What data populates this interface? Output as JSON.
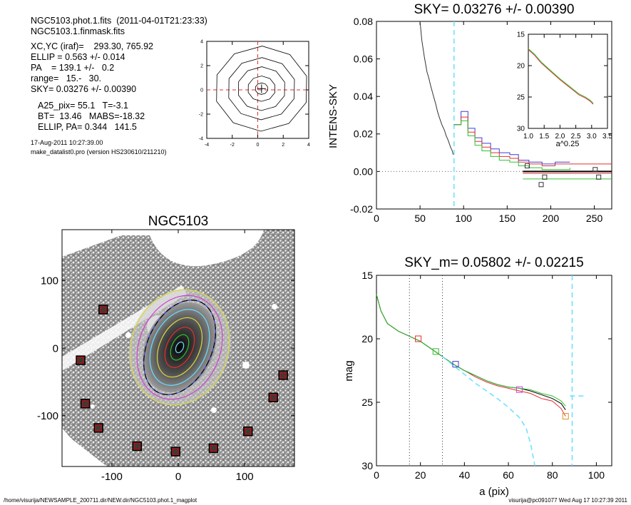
{
  "header": {
    "line1": "NGC5103.phot.1.fits  (2011-04-01T21:23:33)",
    "line2": "NGC5103.1.finmask.fits",
    "xcyc": "XC,YC (iraf)=    293.30, 765.92",
    "ellip": "ELLIP = 0.563 +/- 0.014",
    "pa": "PA    = 139.1 +/-   0.2",
    "range": "range=   15.-   30.",
    "sky": "SKY= 0.03276 +/- 0.00390",
    "a25": "A25_pix= 55.1   T=-3.1",
    "bt": "BT=  13.46   MABS=-18.32",
    "ellip_pa": "ELLIP, PA= 0.344   141.5",
    "date": "17-Aug-2011 10:27:39.00",
    "program": "make_datalist0.pro (version HS230610/211210)"
  },
  "footer": {
    "path": "/home/visurija/NEWSAMPLE_200711.dir/NEW.dir/NGC5103.phot.1_magplot",
    "user": "visurija@pc091077  Wed Aug 17 10:27:39 2011"
  },
  "colors": {
    "red": "#e23030",
    "green": "#30c030",
    "blue": "#3c3cd8",
    "cyan": "#66e0ff",
    "magenta": "#d040d0",
    "yellow": "#d8d840",
    "black": "#000000",
    "box": "#b01010"
  },
  "chart_data": [
    {
      "type": "contour",
      "title": "",
      "xlim": [
        -4,
        4
      ],
      "ylim": [
        -4,
        4
      ],
      "xticks": [
        "-4",
        "-2",
        "0",
        "2",
        "4"
      ],
      "yticks": [
        "4",
        "2",
        "0",
        "-2",
        "-4"
      ],
      "center": [
        0.3,
        0.1
      ],
      "contour_radii": [
        0.5,
        1.1,
        1.9,
        2.7,
        3.7
      ]
    },
    {
      "type": "line",
      "title": "SKY= 0.03276 +/- 0.00390",
      "xlabel": "",
      "ylabel": "INTENS-SKY",
      "xlim": [
        0,
        270
      ],
      "ylim": [
        -0.02,
        0.08
      ],
      "xticks": [
        "0",
        "50",
        "100",
        "150",
        "200",
        "250"
      ],
      "yticks": [
        "0.08",
        "0.06",
        "0.04",
        "0.02",
        "0.00",
        "-0.02"
      ],
      "vline_x": 89,
      "profile": {
        "x": [
          50,
          52,
          55,
          58,
          60,
          62,
          65,
          68,
          70,
          72,
          75,
          78,
          80,
          82,
          85,
          87,
          88
        ],
        "y": [
          0.08,
          0.07,
          0.061,
          0.053,
          0.05,
          0.046,
          0.041,
          0.036,
          0.032,
          0.029,
          0.025,
          0.022,
          0.019,
          0.017,
          0.013,
          0.011,
          0.009
        ]
      },
      "series": [
        {
          "name": "blue",
          "x": [
            89,
            97,
            105,
            113,
            121,
            131,
            141,
            153,
            163,
            175,
            190,
            205,
            222
          ],
          "y": [
            0.025,
            0.032,
            0.023,
            0.018,
            0.015,
            0.012,
            0.01,
            0.009,
            0.006,
            0.005,
            0.004,
            0.005,
            0.005
          ]
        },
        {
          "name": "red",
          "x": [
            89,
            97,
            105,
            113,
            121,
            131,
            141,
            153,
            163,
            175,
            190,
            205,
            222,
            270
          ],
          "y": [
            0.025,
            0.029,
            0.021,
            0.016,
            0.013,
            0.01,
            0.008,
            0.007,
            0.005,
            0.004,
            0.003,
            0.004,
            0.004,
            0.004
          ]
        },
        {
          "name": "green",
          "x": [
            89,
            97,
            105,
            113,
            121,
            131,
            141,
            153,
            163,
            175,
            190,
            205,
            222
          ],
          "y": [
            0.025,
            0.027,
            0.019,
            0.014,
            0.011,
            0.008,
            0.006,
            0.005,
            0.003,
            0.002,
            0.001,
            0.001,
            0.002
          ]
        }
      ],
      "sky_lines": [
        {
          "color": "black",
          "x": [
            168,
            270
          ],
          "y": 0.0
        },
        {
          "color": "red",
          "x": [
            168,
            270
          ],
          "y": -0.001
        },
        {
          "color": "green",
          "x": [
            168,
            270
          ],
          "y": -0.004
        }
      ],
      "markers": [
        {
          "x": 173,
          "y": 0.003
        },
        {
          "x": 189,
          "y": -0.007
        },
        {
          "x": 193,
          "y": -0.003
        },
        {
          "x": 251,
          "y": 0.001
        },
        {
          "x": 255,
          "y": -0.003
        }
      ],
      "inset": {
        "xlabel": "a^0.25",
        "xlim": [
          1.0,
          3.5
        ],
        "ylim": [
          15,
          30
        ],
        "xticks": [
          "1.0",
          "1.5",
          "2.0",
          "2.5",
          "3.0",
          "3.5"
        ],
        "yticks": [
          "15",
          "20",
          "25",
          "30"
        ],
        "x": [
          1.0,
          1.2,
          1.4,
          1.6,
          1.8,
          2.0,
          2.2,
          2.4,
          2.6,
          2.8,
          2.95,
          3.05
        ],
        "y": [
          17.3,
          18.2,
          19.4,
          20.3,
          21.2,
          22.1,
          22.9,
          23.7,
          24.5,
          25.0,
          25.5,
          26.0
        ]
      }
    },
    {
      "type": "image",
      "title": "NGC5103",
      "xlim": [
        -175,
        175
      ],
      "ylim": [
        -175,
        175
      ],
      "xticks": [
        "-100",
        "0",
        "100"
      ],
      "yticks": [
        "100",
        "0",
        "-100"
      ],
      "masked_boxes": [
        [
          -113,
          57
        ],
        [
          -147,
          -18
        ],
        [
          -140,
          -82
        ],
        [
          -120,
          -118
        ],
        [
          -62,
          -145
        ],
        [
          -4,
          -153
        ],
        [
          53,
          -148
        ],
        [
          105,
          -123
        ],
        [
          143,
          -73
        ],
        [
          158,
          -40
        ]
      ]
    },
    {
      "type": "line",
      "title": "SKY_m=  0.05802 +/- 0.02215",
      "xlabel": "a (pix)",
      "ylabel": "mag",
      "xlim": [
        0,
        107
      ],
      "ylim": [
        15,
        30
      ],
      "xticks": [
        "0",
        "20",
        "40",
        "60",
        "80",
        "100"
      ],
      "yticks": [
        "15",
        "20",
        "25",
        "30"
      ],
      "dotted_x": [
        15,
        30
      ],
      "dashed_x": 89,
      "series": [
        {
          "name": "red",
          "x": [
            0,
            2,
            5,
            10,
            15,
            20,
            25,
            30,
            35,
            40,
            45,
            50,
            55,
            60,
            65,
            70,
            75,
            80,
            84,
            86
          ],
          "y": [
            16.5,
            17.8,
            18.8,
            19.4,
            19.8,
            20.2,
            20.8,
            21.4,
            22.0,
            22.5,
            23.0,
            23.4,
            23.7,
            23.9,
            24.1,
            24.3,
            24.7,
            24.9,
            25.5,
            26.1
          ]
        },
        {
          "name": "black",
          "x": [
            0,
            2,
            5,
            10,
            15,
            20,
            25,
            30,
            35,
            40,
            45,
            50,
            55,
            60,
            65,
            70,
            75,
            80,
            84,
            86
          ],
          "y": [
            16.5,
            17.8,
            18.8,
            19.4,
            19.8,
            20.2,
            20.8,
            21.4,
            22.0,
            22.5,
            22.9,
            23.3,
            23.6,
            23.8,
            23.9,
            24.1,
            24.4,
            24.7,
            25.1,
            25.6
          ]
        },
        {
          "name": "green",
          "x": [
            0,
            2,
            5,
            10,
            15,
            20,
            25,
            30,
            35,
            40,
            45,
            50,
            55,
            60,
            65,
            70,
            75,
            80,
            84,
            86
          ],
          "y": [
            16.5,
            17.8,
            18.8,
            19.4,
            19.8,
            20.2,
            20.8,
            21.4,
            22.0,
            22.5,
            22.9,
            23.3,
            23.6,
            23.8,
            23.9,
            24.0,
            24.3,
            24.5,
            24.9,
            25.3
          ]
        },
        {
          "name": "cyan",
          "x": [
            30,
            35,
            40,
            45,
            50,
            55,
            60,
            65,
            68,
            70,
            71.5,
            72
          ],
          "y": [
            21.4,
            22.1,
            22.8,
            23.5,
            24.1,
            24.7,
            25.4,
            26.2,
            27.0,
            28.2,
            29.5,
            30.0
          ]
        }
      ],
      "sky_line": {
        "color": "cyan",
        "x": [
          88,
          95
        ],
        "y": 24.5
      },
      "markers": [
        {
          "x": 19,
          "y": 20.0,
          "color": "red"
        },
        {
          "x": 27,
          "y": 21.0,
          "color": "green"
        },
        {
          "x": 36,
          "y": 22.0,
          "color": "blue"
        },
        {
          "x": 65,
          "y": 24.0,
          "color": "magenta"
        },
        {
          "x": 86,
          "y": 26.1,
          "color": "orange"
        }
      ]
    }
  ]
}
